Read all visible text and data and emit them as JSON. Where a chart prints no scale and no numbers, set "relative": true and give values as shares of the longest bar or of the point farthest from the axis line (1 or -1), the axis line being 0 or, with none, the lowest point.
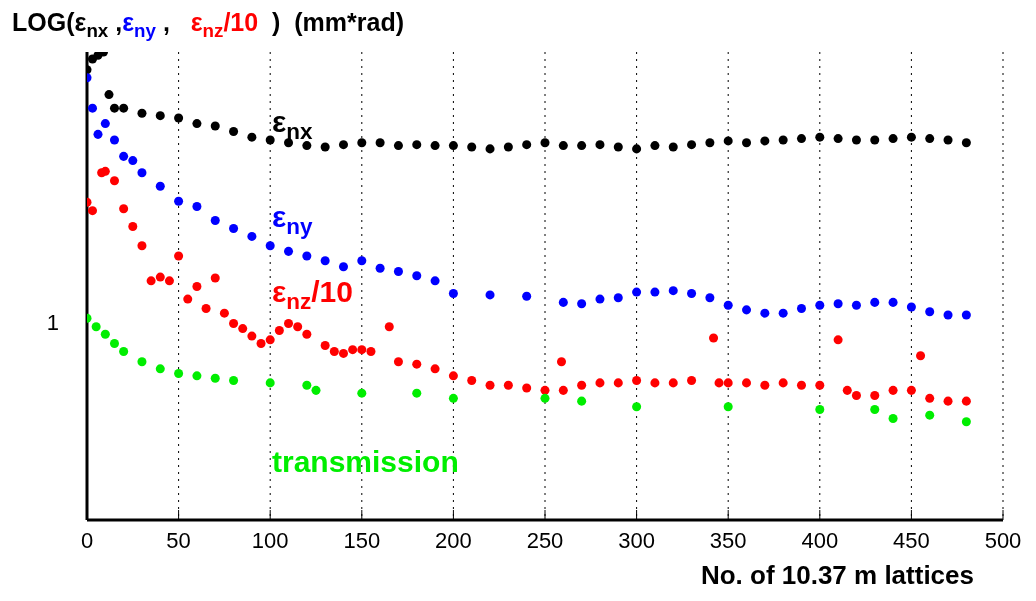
{
  "chart_data": {
    "type": "scatter",
    "title": "LOG(ε$_{nx}$ ,ε$_{ny}$ ,   ε$_{nz}$/10  )  (mm*rad)",
    "xlabel": "No. of 10.37 m lattices",
    "relative": true,
    "grid": "x",
    "marker": "circle",
    "xlim": [
      0,
      500
    ],
    "xticks": [
      0,
      50,
      100,
      150,
      200,
      250,
      300,
      350,
      400,
      450,
      500
    ],
    "annotations": [
      "1"
    ],
    "series": [
      {
        "name": "ε$_{nx}$",
        "color": "#000000",
        "x": [
          0,
          3,
          6,
          9,
          12,
          15,
          20,
          30,
          40,
          50,
          60,
          70,
          80,
          90,
          100,
          110,
          120,
          130,
          140,
          150,
          160,
          170,
          180,
          190,
          200,
          210,
          220,
          230,
          240,
          250,
          260,
          270,
          280,
          290,
          300,
          310,
          320,
          330,
          340,
          350,
          360,
          370,
          380,
          390,
          400,
          410,
          420,
          430,
          440,
          450,
          460,
          470,
          480
        ],
        "values": [
          0.962,
          0.985,
          0.993,
          1,
          0.909,
          0.88,
          0.88,
          0.869,
          0.864,
          0.859,
          0.847,
          0.842,
          0.83,
          0.818,
          0.812,
          0.806,
          0.8,
          0.797,
          0.802,
          0.806,
          0.806,
          0.8,
          0.802,
          0.8,
          0.8,
          0.797,
          0.793,
          0.797,
          0.802,
          0.806,
          0.8,
          0.8,
          0.802,
          0.797,
          0.793,
          0.8,
          0.797,
          0.802,
          0.806,
          0.81,
          0.806,
          0.81,
          0.812,
          0.815,
          0.818,
          0.815,
          0.812,
          0.812,
          0.815,
          0.818,
          0.815,
          0.812,
          0.806
        ]
      },
      {
        "name": "ε$_{ny}$",
        "color": "#0000ff",
        "x": [
          0,
          3,
          6,
          10,
          15,
          20,
          25,
          30,
          40,
          50,
          60,
          70,
          80,
          90,
          100,
          110,
          120,
          130,
          140,
          150,
          160,
          170,
          180,
          190,
          200,
          220,
          240,
          260,
          270,
          280,
          290,
          300,
          310,
          320,
          330,
          340,
          350,
          360,
          370,
          380,
          390,
          400,
          410,
          420,
          430,
          440,
          450,
          460,
          470,
          480
        ],
        "values": [
          0.945,
          0.88,
          0.824,
          0.847,
          0.812,
          0.777,
          0.768,
          0.742,
          0.713,
          0.681,
          0.67,
          0.64,
          0.623,
          0.606,
          0.586,
          0.574,
          0.564,
          0.554,
          0.541,
          0.554,
          0.538,
          0.531,
          0.522,
          0.511,
          0.484,
          0.481,
          0.478,
          0.465,
          0.462,
          0.472,
          0.475,
          0.487,
          0.487,
          0.49,
          0.484,
          0.475,
          0.459,
          0.449,
          0.442,
          0.442,
          0.452,
          0.459,
          0.462,
          0.459,
          0.465,
          0.465,
          0.455,
          0.445,
          0.438,
          0.438
        ]
      },
      {
        "name": "ε$_{nz}$/10",
        "color": "#ff0000",
        "x": [
          0,
          3,
          8,
          10,
          15,
          20,
          25,
          30,
          35,
          40,
          45,
          50,
          55,
          60,
          65,
          70,
          75,
          80,
          85,
          90,
          95,
          100,
          105,
          110,
          115,
          120,
          130,
          135,
          140,
          145,
          150,
          155,
          165,
          170,
          180,
          190,
          200,
          210,
          220,
          230,
          240,
          250,
          259,
          260,
          270,
          280,
          290,
          300,
          310,
          320,
          330,
          342,
          345,
          350,
          360,
          370,
          380,
          390,
          400,
          410,
          415,
          420,
          430,
          440,
          450,
          455,
          460,
          470,
          480
        ],
        "values": [
          0.679,
          0.661,
          0.742,
          0.745,
          0.725,
          0.665,
          0.627,
          0.586,
          0.511,
          0.519,
          0.511,
          0.564,
          0.472,
          0.499,
          0.452,
          0.517,
          0.442,
          0.42,
          0.409,
          0.393,
          0.377,
          0.385,
          0.405,
          0.42,
          0.413,
          0.397,
          0.373,
          0.36,
          0.356,
          0.364,
          0.364,
          0.36,
          0.413,
          0.338,
          0.333,
          0.323,
          0.308,
          0.298,
          0.288,
          0.288,
          0.282,
          0.277,
          0.338,
          0.277,
          0.288,
          0.293,
          0.293,
          0.298,
          0.293,
          0.293,
          0.298,
          0.389,
          0.293,
          0.293,
          0.293,
          0.288,
          0.293,
          0.288,
          0.288,
          0.385,
          0.277,
          0.266,
          0.266,
          0.277,
          0.277,
          0.351,
          0.26,
          0.254,
          0.254
        ]
      },
      {
        "name": "transmission",
        "color": "#00ee00",
        "x": [
          0,
          5,
          10,
          15,
          20,
          30,
          40,
          50,
          60,
          70,
          80,
          100,
          120,
          125,
          150,
          180,
          200,
          250,
          270,
          300,
          350,
          400,
          430,
          440,
          460,
          480
        ],
        "values": [
          0.431,
          0.413,
          0.397,
          0.377,
          0.36,
          0.338,
          0.323,
          0.313,
          0.308,
          0.303,
          0.298,
          0.293,
          0.288,
          0.277,
          0.271,
          0.271,
          0.26,
          0.26,
          0.254,
          0.242,
          0.242,
          0.236,
          0.236,
          0.217,
          0.224,
          0.21
        ]
      }
    ]
  }
}
